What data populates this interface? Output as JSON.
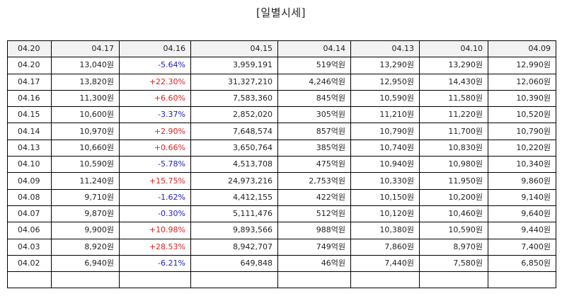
{
  "title": "[일별시세]",
  "header": [
    "04.20",
    "04.17",
    "04.16",
    "04.15",
    "04.14",
    "04.13",
    "04.10",
    "04.09"
  ],
  "rows": [
    [
      "04.20",
      "13,040원",
      "-5.64%",
      "3,959,191",
      "519억원",
      "13,290원",
      "13,290원",
      "12,990원"
    ],
    [
      "04.17",
      "13,820원",
      "+22.30%",
      "31,327,210",
      "4,246억원",
      "12,950원",
      "14,430원",
      "12,060원"
    ],
    [
      "04.16",
      "11,300원",
      "+6.60%",
      "7,583,360",
      "845억원",
      "10,590원",
      "11,580원",
      "10,390원"
    ],
    [
      "04.15",
      "10,600원",
      "-3.37%",
      "2,852,020",
      "305억원",
      "11,210원",
      "11,220원",
      "10,520원"
    ],
    [
      "04.14",
      "10,970원",
      "+2.90%",
      "7,648,574",
      "857억원",
      "10,790원",
      "11,700원",
      "10,790원"
    ],
    [
      "04.13",
      "10,660원",
      "+0.66%",
      "3,650,764",
      "385억원",
      "10,740원",
      "10,830원",
      "10,220원"
    ],
    [
      "04.10",
      "10,590원",
      "-5.78%",
      "4,513,708",
      "475억원",
      "10,940원",
      "10,980원",
      "10,340원"
    ],
    [
      "04.09",
      "11,240원",
      "+15.75%",
      "24,973,216",
      "2,753억원",
      "10,330원",
      "11,950원",
      "9,860원"
    ],
    [
      "04.08",
      "9,710원",
      "-1.62%",
      "4,412,155",
      "422억원",
      "10,150원",
      "10,200원",
      "9,140원"
    ],
    [
      "04.07",
      "9,870원",
      "-0.30%",
      "5,111,476",
      "512억원",
      "10,120원",
      "10,460원",
      "9,640원"
    ],
    [
      "04.06",
      "9,900원",
      "+10.98%",
      "9,893,566",
      "988억원",
      "10,380원",
      "10,590원",
      "9,440원"
    ],
    [
      "04.03",
      "8,920원",
      "+28.53%",
      "8,942,707",
      "749억원",
      "7,860원",
      "8,970원",
      "7,400원"
    ],
    [
      "04.02",
      "6,940원",
      "-6.21%",
      "649,848",
      "46억원",
      "7,440원",
      "7,580원",
      "6,850원"
    ]
  ],
  "colors": {
    "up": "#e02020",
    "down": "#2020c0"
  }
}
